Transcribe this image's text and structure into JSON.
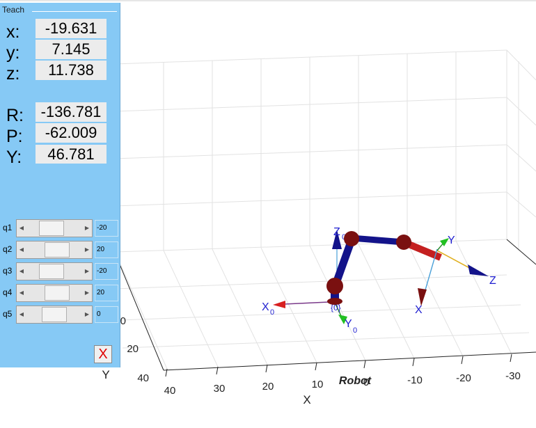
{
  "window": {
    "border_top_color": "#cccccc"
  },
  "teach_panel": {
    "title": "Teach",
    "position": {
      "x_label": "x:",
      "x_value": "-19.631",
      "y_label": "y:",
      "y_value": "7.145",
      "z_label": "z:",
      "z_value": "11.738"
    },
    "orientation": {
      "r_label": "R:",
      "r_value": "-136.781",
      "p_label": "P:",
      "p_value": "-62.009",
      "yaw_label": "Y:",
      "yaw_value": "46.781"
    },
    "joints": [
      {
        "label": "q1",
        "value": "-20",
        "slider_fraction": 0.4
      },
      {
        "label": "q2",
        "value": "20",
        "slider_fraction": 0.6
      },
      {
        "label": "q3",
        "value": "-20",
        "slider_fraction": 0.4
      },
      {
        "label": "q4",
        "value": "20",
        "slider_fraction": 0.6
      },
      {
        "label": "q5",
        "value": "0",
        "slider_fraction": 0.5
      }
    ],
    "close_label": "X",
    "panel_color": "#86c9f5"
  },
  "plot": {
    "robot_name": "Robot",
    "x_axis_label": "X",
    "y_axis_label": "Y",
    "x_ticks": [
      "40",
      "30",
      "20",
      "10",
      "0",
      "-10",
      "-20",
      "-30"
    ],
    "y_ticks": [
      "40",
      "20",
      "0"
    ],
    "base_frame": {
      "x_label": "X",
      "x_sub": "0",
      "y_label": "Y",
      "y_sub": "0",
      "z_label": "Z",
      "z_sub": "0",
      "origin_label": "{0}"
    },
    "tool_frame": {
      "x_label": "X",
      "y_label": "Y",
      "z_label": "Z"
    },
    "colors": {
      "link": "#13138a",
      "joint": "#7a1010",
      "end_link": "#c42020",
      "label": "#1f1fd0"
    }
  }
}
